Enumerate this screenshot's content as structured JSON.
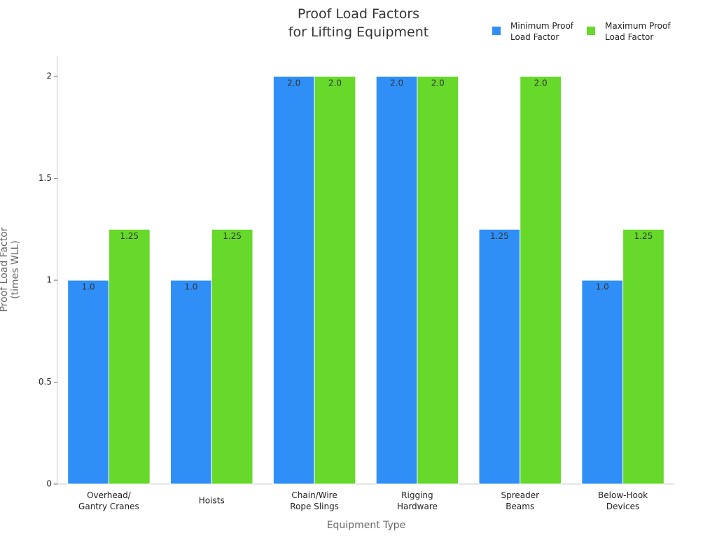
{
  "chart_data": {
    "type": "bar",
    "title": "Proof Load Factors\nfor Lifting Equipment",
    "x_label": "Equipment Type",
    "y_label": "Proof Load Factor\n(times WLL)",
    "categories": [
      "Overhead/\nGantry Cranes",
      "Hoists",
      "Chain/Wire\nRope Slings",
      "Rigging\nHardware",
      "Spreader\nBeams",
      "Below-Hook\nDevices"
    ],
    "series": [
      {
        "name": "Minimum Proof\nLoad Factor",
        "color": "#2f8ff7",
        "values": [
          1,
          1,
          2,
          2,
          1.25,
          1
        ],
        "value_labels": [
          "1.0",
          "1.0",
          "2.0",
          "2.0",
          "1.25",
          "1.0"
        ]
      },
      {
        "name": "Maximum Proof\nLoad Factor",
        "color": "#66d92b",
        "values": [
          1.25,
          1.25,
          2,
          2,
          2,
          1.25
        ],
        "value_labels": [
          "1.25",
          "1.25",
          "2.0",
          "2.0",
          "2.0",
          "1.25"
        ]
      }
    ],
    "ylim": [
      0,
      2.1
    ],
    "yticks": [
      0,
      0.5,
      1,
      1.5,
      2
    ],
    "grid": false,
    "legend": "top-right"
  }
}
